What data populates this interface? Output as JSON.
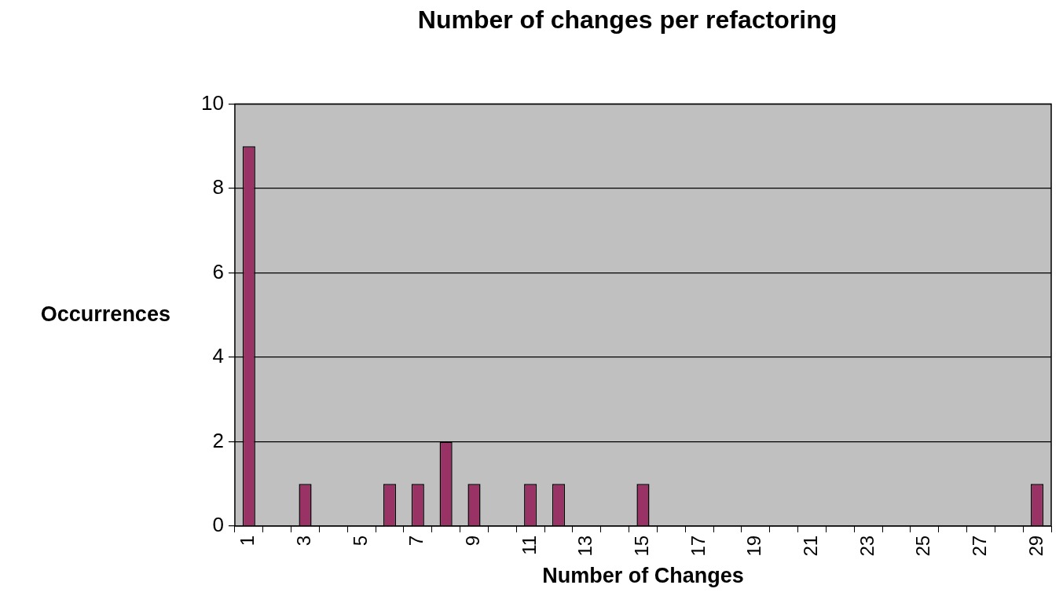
{
  "chart_data": {
    "type": "bar",
    "title": "Number of changes per refactoring",
    "x_label": "Number of Changes",
    "y_label": "Occurrences",
    "categories": [
      1,
      null,
      3,
      null,
      5,
      null,
      7,
      null,
      9,
      null,
      11,
      null,
      13,
      null,
      15,
      null,
      17,
      null,
      19,
      null,
      21,
      null,
      23,
      null,
      25,
      null,
      27,
      null,
      29
    ],
    "values": [
      9,
      0,
      1,
      0,
      0,
      1,
      1,
      2,
      1,
      0,
      1,
      1,
      0,
      0,
      1,
      0,
      0,
      0,
      0,
      0,
      0,
      0,
      0,
      0,
      0,
      0,
      0,
      0,
      1
    ],
    "color": "#993366",
    "ylim": [
      0,
      10
    ],
    "yticks": [
      0,
      2,
      4,
      6,
      8,
      10
    ],
    "grid": true
  }
}
